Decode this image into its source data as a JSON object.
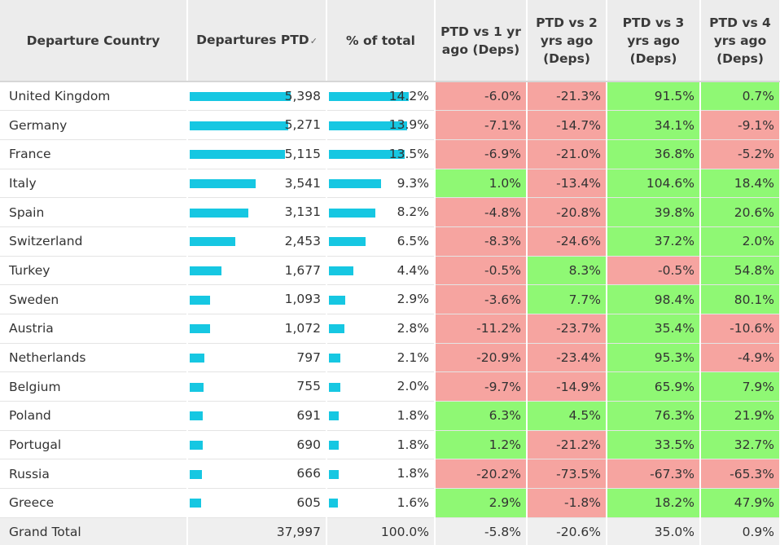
{
  "colors": {
    "bar": "#16c7e2",
    "negative": "#f6a4a0",
    "positive": "#8ff874",
    "header_bg": "#ececec",
    "total_bg": "#efefef"
  },
  "headers": {
    "country": "Departure Country",
    "departures": "Departures PTD",
    "sort_icon": "✓",
    "pct_total": "% of total",
    "vs1": "PTD vs 1 yr ago (Deps)",
    "vs2": "PTD vs 2 yrs ago (Deps)",
    "vs3": "PTD vs 3 yrs ago (Deps)",
    "vs4": "PTD vs 4 yrs ago (Deps)"
  },
  "rows": [
    {
      "country": "United Kingdom",
      "departures": "5,398",
      "deps_num": 5398,
      "pct_total": "14.2%",
      "pct_num": 14.2,
      "vs1": "-6.0%",
      "vs2": "-21.3%",
      "vs3": "91.5%",
      "vs4": "0.7%"
    },
    {
      "country": "Germany",
      "departures": "5,271",
      "deps_num": 5271,
      "pct_total": "13.9%",
      "pct_num": 13.9,
      "vs1": "-7.1%",
      "vs2": "-14.7%",
      "vs3": "34.1%",
      "vs4": "-9.1%"
    },
    {
      "country": "France",
      "departures": "5,115",
      "deps_num": 5115,
      "pct_total": "13.5%",
      "pct_num": 13.5,
      "vs1": "-6.9%",
      "vs2": "-21.0%",
      "vs3": "36.8%",
      "vs4": "-5.2%"
    },
    {
      "country": "Italy",
      "departures": "3,541",
      "deps_num": 3541,
      "pct_total": "9.3%",
      "pct_num": 9.3,
      "vs1": "1.0%",
      "vs2": "-13.4%",
      "vs3": "104.6%",
      "vs4": "18.4%"
    },
    {
      "country": "Spain",
      "departures": "3,131",
      "deps_num": 3131,
      "pct_total": "8.2%",
      "pct_num": 8.2,
      "vs1": "-4.8%",
      "vs2": "-20.8%",
      "vs3": "39.8%",
      "vs4": "20.6%"
    },
    {
      "country": "Switzerland",
      "departures": "2,453",
      "deps_num": 2453,
      "pct_total": "6.5%",
      "pct_num": 6.5,
      "vs1": "-8.3%",
      "vs2": "-24.6%",
      "vs3": "37.2%",
      "vs4": "2.0%"
    },
    {
      "country": "Turkey",
      "departures": "1,677",
      "deps_num": 1677,
      "pct_total": "4.4%",
      "pct_num": 4.4,
      "vs1": "-0.5%",
      "vs2": "8.3%",
      "vs3": "-0.5%",
      "vs4": "54.8%"
    },
    {
      "country": "Sweden",
      "departures": "1,093",
      "deps_num": 1093,
      "pct_total": "2.9%",
      "pct_num": 2.9,
      "vs1": "-3.6%",
      "vs2": "7.7%",
      "vs3": "98.4%",
      "vs4": "80.1%"
    },
    {
      "country": "Austria",
      "departures": "1,072",
      "deps_num": 1072,
      "pct_total": "2.8%",
      "pct_num": 2.8,
      "vs1": "-11.2%",
      "vs2": "-23.7%",
      "vs3": "35.4%",
      "vs4": "-10.6%"
    },
    {
      "country": "Netherlands",
      "departures": "797",
      "deps_num": 797,
      "pct_total": "2.1%",
      "pct_num": 2.1,
      "vs1": "-20.9%",
      "vs2": "-23.4%",
      "vs3": "95.3%",
      "vs4": "-4.9%"
    },
    {
      "country": "Belgium",
      "departures": "755",
      "deps_num": 755,
      "pct_total": "2.0%",
      "pct_num": 2.0,
      "vs1": "-9.7%",
      "vs2": "-14.9%",
      "vs3": "65.9%",
      "vs4": "7.9%"
    },
    {
      "country": "Poland",
      "departures": "691",
      "deps_num": 691,
      "pct_total": "1.8%",
      "pct_num": 1.8,
      "vs1": "6.3%",
      "vs2": "4.5%",
      "vs3": "76.3%",
      "vs4": "21.9%"
    },
    {
      "country": "Portugal",
      "departures": "690",
      "deps_num": 690,
      "pct_total": "1.8%",
      "pct_num": 1.8,
      "vs1": "1.2%",
      "vs2": "-21.2%",
      "vs3": "33.5%",
      "vs4": "32.7%"
    },
    {
      "country": "Russia",
      "departures": "666",
      "deps_num": 666,
      "pct_total": "1.8%",
      "pct_num": 1.8,
      "vs1": "-20.2%",
      "vs2": "-73.5%",
      "vs3": "-67.3%",
      "vs4": "-65.3%"
    },
    {
      "country": "Greece",
      "departures": "605",
      "deps_num": 605,
      "pct_total": "1.6%",
      "pct_num": 1.6,
      "vs1": "2.9%",
      "vs2": "-1.8%",
      "vs3": "18.2%",
      "vs4": "47.9%"
    }
  ],
  "total": {
    "label": "Grand Total",
    "departures": "37,997",
    "pct_total": "100.0%",
    "vs1": "-5.8%",
    "vs2": "-20.6%",
    "vs3": "35.0%",
    "vs4": "0.9%"
  }
}
